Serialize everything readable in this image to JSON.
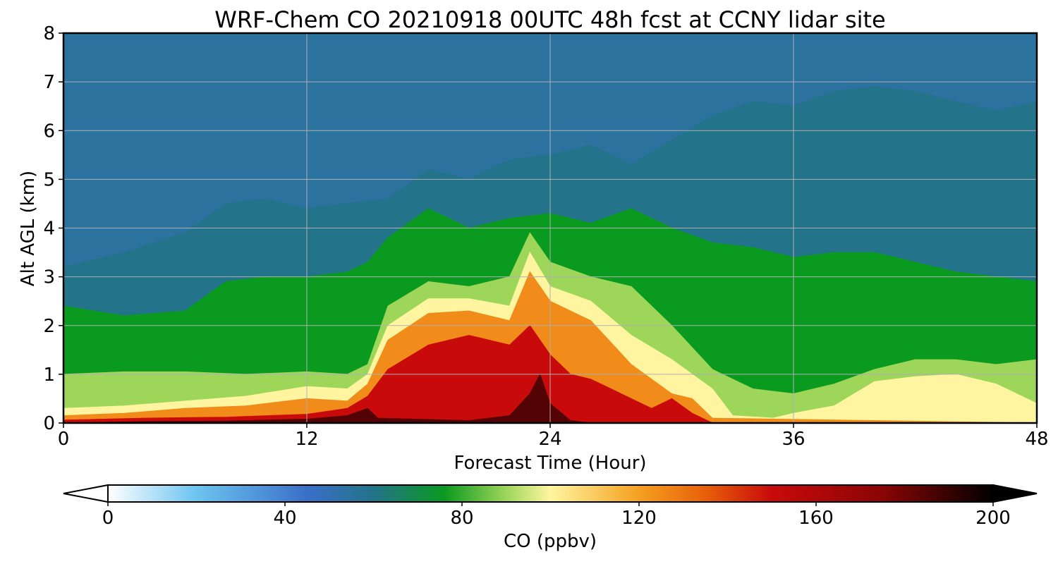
{
  "chart_data": {
    "type": "heatmap",
    "title": "WRF-Chem CO  20210918 00UTC 48h fcst at CCNY lidar site",
    "xlabel": "Forecast Time (Hour)",
    "ylabel": "Alt AGL (km)",
    "xlim": [
      0,
      48
    ],
    "ylim": [
      0,
      8
    ],
    "xticks": [
      "0",
      "12",
      "24",
      "36",
      "48"
    ],
    "yticks": [
      "0",
      "1",
      "2",
      "3",
      "4",
      "5",
      "6",
      "7",
      "8"
    ],
    "grid": true,
    "colorbar": {
      "label": "CO  (ppbv)",
      "range": [
        0,
        200
      ],
      "ticks": [
        "0",
        "40",
        "80",
        "120",
        "160",
        "200"
      ],
      "extend": "both",
      "stops": [
        {
          "value": 0,
          "color": "#ffffff"
        },
        {
          "value": 20,
          "color": "#6cc4f0"
        },
        {
          "value": 45,
          "color": "#3a6fc8"
        },
        {
          "value": 60,
          "color": "#23738a"
        },
        {
          "value": 76,
          "color": "#0a9a20"
        },
        {
          "value": 90,
          "color": "#9ed65a"
        },
        {
          "value": 100,
          "color": "#fff5a0"
        },
        {
          "value": 120,
          "color": "#f5a020"
        },
        {
          "value": 135,
          "color": "#e8600a"
        },
        {
          "value": 150,
          "color": "#c80a0a"
        },
        {
          "value": 175,
          "color": "#8a0505"
        },
        {
          "value": 200,
          "color": "#000000"
        }
      ]
    },
    "contours": [
      {
        "level": 60,
        "points": [
          [
            0,
            3.2
          ],
          [
            3,
            3.5
          ],
          [
            6,
            3.9
          ],
          [
            8,
            4.5
          ],
          [
            10,
            4.6
          ],
          [
            12,
            4.4
          ],
          [
            14,
            4.5
          ],
          [
            16,
            4.6
          ],
          [
            18,
            5.2
          ],
          [
            20,
            5.0
          ],
          [
            22,
            5.4
          ],
          [
            24,
            5.5
          ],
          [
            26,
            5.7
          ],
          [
            28,
            5.3
          ],
          [
            30,
            5.8
          ],
          [
            32,
            6.3
          ],
          [
            34,
            6.6
          ],
          [
            36,
            6.5
          ],
          [
            38,
            6.8
          ],
          [
            40,
            6.9
          ],
          [
            42,
            6.8
          ],
          [
            44,
            6.6
          ],
          [
            46,
            6.4
          ],
          [
            48,
            6.6
          ]
        ]
      },
      {
        "level": 76,
        "points": [
          [
            0,
            2.4
          ],
          [
            3,
            2.2
          ],
          [
            6,
            2.3
          ],
          [
            8,
            2.9
          ],
          [
            10,
            3.0
          ],
          [
            12,
            3.0
          ],
          [
            14,
            3.1
          ],
          [
            15,
            3.3
          ],
          [
            16,
            3.8
          ],
          [
            18,
            4.4
          ],
          [
            20,
            4.0
          ],
          [
            22,
            4.2
          ],
          [
            24,
            4.3
          ],
          [
            26,
            4.1
          ],
          [
            28,
            4.4
          ],
          [
            30,
            4.0
          ],
          [
            32,
            3.7
          ],
          [
            34,
            3.6
          ],
          [
            36,
            3.4
          ],
          [
            38,
            3.5
          ],
          [
            40,
            3.5
          ],
          [
            42,
            3.3
          ],
          [
            44,
            3.1
          ],
          [
            46,
            3.0
          ],
          [
            48,
            2.9
          ]
        ]
      },
      {
        "level": 90,
        "points": [
          [
            0,
            1.0
          ],
          [
            3,
            1.05
          ],
          [
            6,
            1.05
          ],
          [
            9,
            1.0
          ],
          [
            12,
            1.05
          ],
          [
            14,
            1.0
          ],
          [
            15,
            1.2
          ],
          [
            16,
            2.4
          ],
          [
            18,
            2.9
          ],
          [
            20,
            2.8
          ],
          [
            22,
            3.0
          ],
          [
            23,
            3.9
          ],
          [
            24,
            3.3
          ],
          [
            26,
            3.0
          ],
          [
            28,
            2.8
          ],
          [
            30,
            2.0
          ],
          [
            32,
            1.1
          ],
          [
            34,
            0.7
          ],
          [
            36,
            0.6
          ],
          [
            38,
            0.8
          ],
          [
            40,
            1.1
          ],
          [
            42,
            1.3
          ],
          [
            44,
            1.3
          ],
          [
            46,
            1.2
          ],
          [
            48,
            1.3
          ]
        ]
      },
      {
        "level": 100,
        "points": [
          [
            0,
            0.3
          ],
          [
            3,
            0.35
          ],
          [
            6,
            0.45
          ],
          [
            9,
            0.55
          ],
          [
            12,
            0.75
          ],
          [
            14,
            0.7
          ],
          [
            15,
            1.0
          ],
          [
            16,
            2.0
          ],
          [
            18,
            2.55
          ],
          [
            20,
            2.55
          ],
          [
            22,
            2.4
          ],
          [
            23,
            3.5
          ],
          [
            24,
            2.8
          ],
          [
            26,
            2.5
          ],
          [
            28,
            1.8
          ],
          [
            30,
            1.3
          ],
          [
            32,
            0.7
          ],
          [
            33,
            0.15
          ],
          [
            35,
            0.1
          ],
          [
            36,
            0.2
          ],
          [
            38,
            0.35
          ],
          [
            40,
            0.85
          ],
          [
            42,
            0.95
          ],
          [
            44,
            1.0
          ],
          [
            46,
            0.8
          ],
          [
            48,
            0.4
          ]
        ]
      },
      {
        "level": 125,
        "points": [
          [
            0,
            0.15
          ],
          [
            3,
            0.2
          ],
          [
            6,
            0.3
          ],
          [
            9,
            0.35
          ],
          [
            12,
            0.5
          ],
          [
            14,
            0.45
          ],
          [
            15,
            0.8
          ],
          [
            16,
            1.7
          ],
          [
            18,
            2.25
          ],
          [
            20,
            2.3
          ],
          [
            22,
            2.1
          ],
          [
            23,
            3.1
          ],
          [
            24,
            2.5
          ],
          [
            26,
            2.1
          ],
          [
            28,
            1.2
          ],
          [
            29,
            0.9
          ],
          [
            30,
            0.6
          ],
          [
            31,
            0.5
          ],
          [
            32,
            0.1
          ],
          [
            48,
            0.0
          ]
        ]
      },
      {
        "level": 150,
        "points": [
          [
            0,
            0.06
          ],
          [
            4,
            0.1
          ],
          [
            8,
            0.12
          ],
          [
            12,
            0.18
          ],
          [
            14,
            0.3
          ],
          [
            15,
            0.55
          ],
          [
            16,
            1.1
          ],
          [
            18,
            1.6
          ],
          [
            20,
            1.8
          ],
          [
            22,
            1.6
          ],
          [
            23,
            2.0
          ],
          [
            24,
            1.4
          ],
          [
            25,
            1.0
          ],
          [
            26,
            0.9
          ],
          [
            27,
            0.7
          ],
          [
            28,
            0.5
          ],
          [
            29,
            0.3
          ],
          [
            30,
            0.5
          ],
          [
            31,
            0.2
          ],
          [
            32,
            0.0
          ]
        ]
      },
      {
        "level": 185,
        "points": [
          [
            0,
            0.0
          ],
          [
            4,
            0.03
          ],
          [
            8,
            0.04
          ],
          [
            12,
            0.08
          ],
          [
            14,
            0.15
          ],
          [
            15,
            0.3
          ],
          [
            15.5,
            0.1
          ],
          [
            20,
            0.05
          ],
          [
            22,
            0.15
          ],
          [
            23,
            0.6
          ],
          [
            23.5,
            1.0
          ],
          [
            24,
            0.4
          ],
          [
            25,
            0.05
          ],
          [
            26,
            0.0
          ]
        ]
      }
    ]
  }
}
